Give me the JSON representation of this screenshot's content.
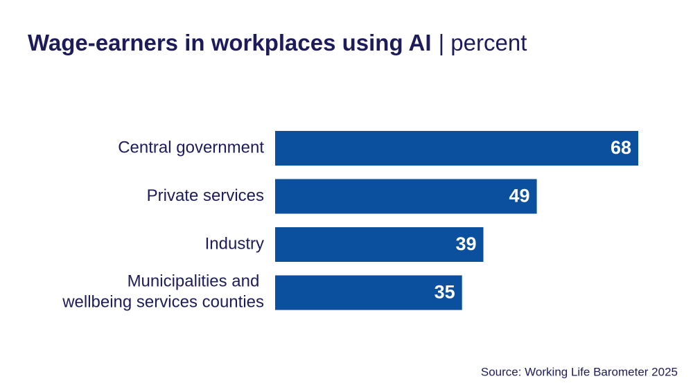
{
  "chart_data": {
    "type": "bar",
    "orientation": "horizontal",
    "title": "Wage-earners in workplaces using AI",
    "subtitle": "| percent",
    "categories": [
      "Central government",
      "Private services",
      "Industry",
      "Municipalities and wellbeing services counties"
    ],
    "values": [
      68,
      49,
      39,
      35
    ],
    "color": "#0b4f9f",
    "source": "Source: Working Life Barometer 2025"
  }
}
